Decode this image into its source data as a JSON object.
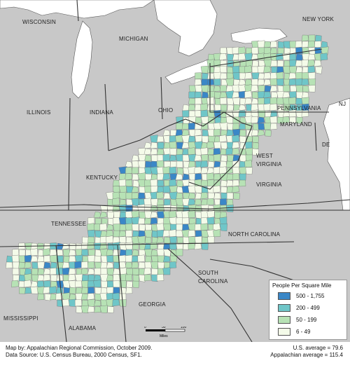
{
  "map": {
    "states": [
      {
        "label": "WISCONSIN"
      },
      {
        "label": "MICHIGAN"
      },
      {
        "label": "NEW YORK"
      },
      {
        "label": "ILLINOIS"
      },
      {
        "label": "INDIANA"
      },
      {
        "label": "OHIO"
      },
      {
        "label": "PENNSYLVANIA"
      },
      {
        "label": "NJ"
      },
      {
        "label": "MARYLAND"
      },
      {
        "label": "DE"
      },
      {
        "label": "WEST"
      },
      {
        "label": "VIRGINIA"
      },
      {
        "label": "KENTUCKY"
      },
      {
        "label": "VIRGINIA"
      },
      {
        "label": "TENNESSEE"
      },
      {
        "label": "NORTH CAROLINA"
      },
      {
        "label": "SOUTH"
      },
      {
        "label": "CAROLINA"
      },
      {
        "label": "GEORGIA"
      },
      {
        "label": "MISSISSIPPI"
      },
      {
        "label": "ALABAMA"
      }
    ],
    "colors": {
      "water": "#ffffff",
      "land": "#c8c8c8",
      "border": "#333333",
      "class1": "#3a87c7",
      "class2": "#6fc6c8",
      "class3": "#b7e2b5",
      "class4": "#f4fbe9"
    }
  },
  "legend": {
    "title": "People Per Square Mile",
    "items": [
      {
        "label": "500 - 1,755",
        "color": "#3a87c7"
      },
      {
        "label": "200 - 499",
        "color": "#6fc6c8"
      },
      {
        "label": "50 - 199",
        "color": "#b7e2b5"
      },
      {
        "label": "6 - 49",
        "color": "#f4fbe9"
      }
    ]
  },
  "scale": {
    "ticks": [
      "0",
      "50",
      "100"
    ],
    "unit": "Miles"
  },
  "footer": {
    "credit": "Map by: Appalachian Regional Commission, October 2009.",
    "source": "Data Source: U.S. Census Bureau, 2000 Census, SF1.",
    "us_avg": "U.S. average = 79.6",
    "app_avg": "Appalachian average = 115.4"
  }
}
